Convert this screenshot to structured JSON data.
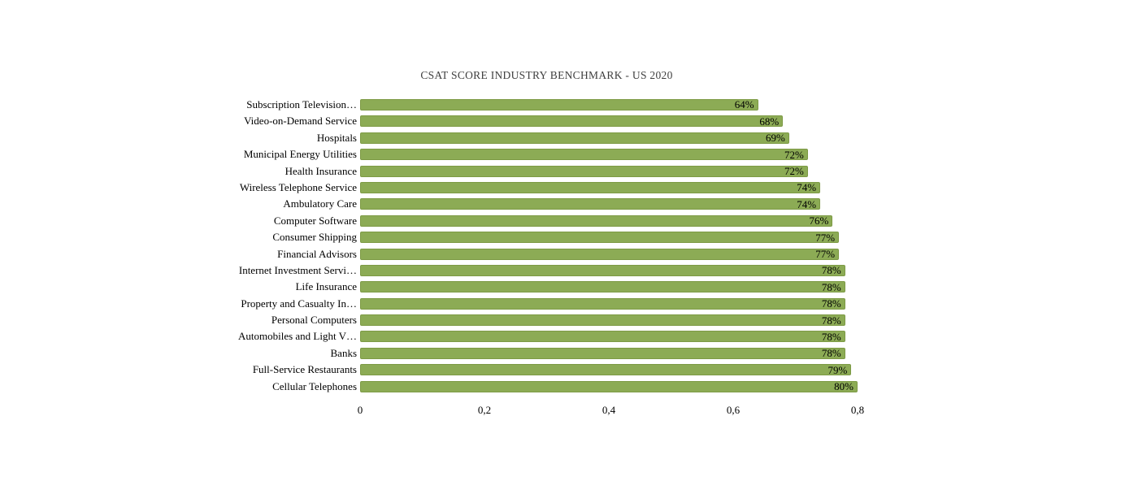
{
  "colors": {
    "bar_fill": "#8cab55",
    "bar_border": "#7d9a45",
    "title_text": "#3e3e3e",
    "label_text": "#000000",
    "background": "#ffffff"
  },
  "chart_data": {
    "type": "bar",
    "orientation": "horizontal",
    "title": "CSAT SCORE INDUSTRY BENCHMARK - US 2020",
    "categories": [
      "Subscription Television…",
      "Video-on-Demand Service",
      "Hospitals",
      "Municipal Energy Utilities",
      "Health Insurance",
      "Wireless Telephone Service",
      "Ambulatory Care",
      "Computer Software",
      "Consumer Shipping",
      "Financial Advisors",
      "Internet Investment Servi…",
      "Life Insurance",
      "Property and Casualty In…",
      "Personal Computers",
      "Automobiles and Light V…",
      "Banks",
      "Full-Service Restaurants",
      "Cellular Telephones"
    ],
    "values": [
      0.64,
      0.68,
      0.69,
      0.72,
      0.72,
      0.74,
      0.74,
      0.76,
      0.77,
      0.77,
      0.78,
      0.78,
      0.78,
      0.78,
      0.78,
      0.78,
      0.79,
      0.8
    ],
    "data_labels": [
      "64%",
      "68%",
      "69%",
      "72%",
      "72%",
      "74%",
      "74%",
      "76%",
      "77%",
      "77%",
      "78%",
      "78%",
      "78%",
      "78%",
      "78%",
      "78%",
      "79%",
      "80%"
    ],
    "x_ticks": [
      "0",
      "0,2",
      "0,4",
      "0,6",
      "0,8"
    ],
    "x_tick_values": [
      0,
      0.2,
      0.4,
      0.6,
      0.8
    ],
    "xlim": [
      0,
      0.8
    ],
    "grid": false,
    "legend": false,
    "axis_line": false
  }
}
